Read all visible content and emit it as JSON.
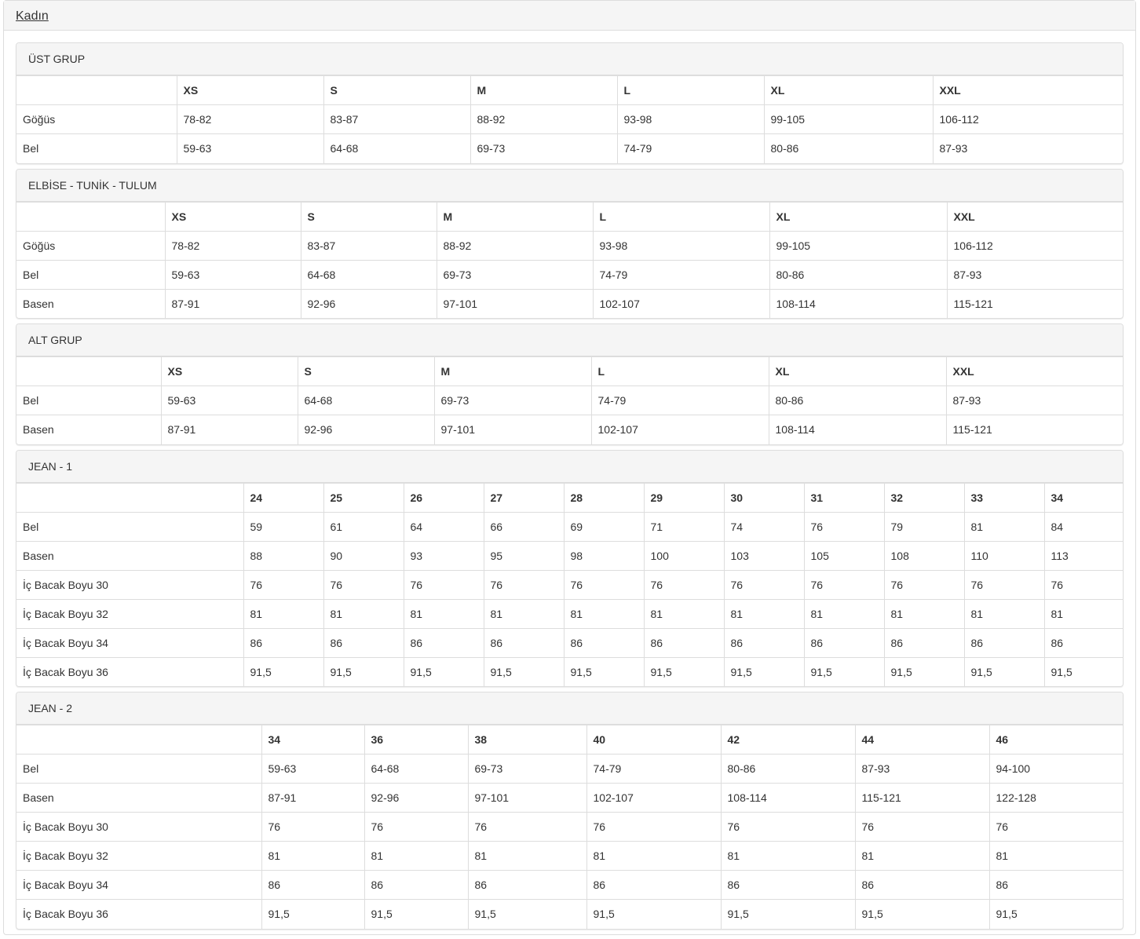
{
  "title": "Kadın",
  "tables": [
    {
      "name": "ÜST GRUP",
      "headers": [
        "",
        "XS",
        "S",
        "M",
        "L",
        "XL",
        "XXL"
      ],
      "rows": [
        [
          "Göğüs",
          "78-82",
          "83-87",
          "88-92",
          "93-98",
          "99-105",
          "106-112"
        ],
        [
          "Bel",
          "59-63",
          "64-68",
          "69-73",
          "74-79",
          "80-86",
          "87-93"
        ]
      ]
    },
    {
      "name": "ELBİSE - TUNİK - TULUM",
      "headers": [
        "",
        "XS",
        "S",
        "M",
        "L",
        "XL",
        "XXL"
      ],
      "rows": [
        [
          "Göğüs",
          "78-82",
          "83-87",
          "88-92",
          "93-98",
          "99-105",
          "106-112"
        ],
        [
          "Bel",
          "59-63",
          "64-68",
          "69-73",
          "74-79",
          "80-86",
          "87-93"
        ],
        [
          "Basen",
          "87-91",
          "92-96",
          "97-101",
          "102-107",
          "108-114",
          "115-121"
        ]
      ]
    },
    {
      "name": "ALT GRUP",
      "headers": [
        "",
        "XS",
        "S",
        "M",
        "L",
        "XL",
        "XXL"
      ],
      "rows": [
        [
          "Bel",
          "59-63",
          "64-68",
          "69-73",
          "74-79",
          "80-86",
          "87-93"
        ],
        [
          "Basen",
          "87-91",
          "92-96",
          "97-101",
          "102-107",
          "108-114",
          "115-121"
        ]
      ]
    },
    {
      "name": "JEAN - 1",
      "headers": [
        "",
        "24",
        "25",
        "26",
        "27",
        "28",
        "29",
        "30",
        "31",
        "32",
        "33",
        "34"
      ],
      "rows": [
        [
          "Bel",
          "59",
          "61",
          "64",
          "66",
          "69",
          "71",
          "74",
          "76",
          "79",
          "81",
          "84"
        ],
        [
          "Basen",
          "88",
          "90",
          "93",
          "95",
          "98",
          "100",
          "103",
          "105",
          "108",
          "110",
          "113"
        ],
        [
          "İç Bacak Boyu 30",
          "76",
          "76",
          "76",
          "76",
          "76",
          "76",
          "76",
          "76",
          "76",
          "76",
          "76"
        ],
        [
          "İç Bacak Boyu 32",
          "81",
          "81",
          "81",
          "81",
          "81",
          "81",
          "81",
          "81",
          "81",
          "81",
          "81"
        ],
        [
          "İç Bacak Boyu 34",
          "86",
          "86",
          "86",
          "86",
          "86",
          "86",
          "86",
          "86",
          "86",
          "86",
          "86"
        ],
        [
          "İç Bacak Boyu 36",
          "91,5",
          "91,5",
          "91,5",
          "91,5",
          "91,5",
          "91,5",
          "91,5",
          "91,5",
          "91,5",
          "91,5",
          "91,5"
        ]
      ]
    },
    {
      "name": "JEAN - 2",
      "headers": [
        "",
        "34",
        "36",
        "38",
        "40",
        "42",
        "44",
        "46"
      ],
      "rows": [
        [
          "Bel",
          "59-63",
          "64-68",
          "69-73",
          "74-79",
          "80-86",
          "87-93",
          "94-100"
        ],
        [
          "Basen",
          "87-91",
          "92-96",
          "97-101",
          "102-107",
          "108-114",
          "115-121",
          "122-128"
        ],
        [
          "İç Bacak Boyu 30",
          "76",
          "76",
          "76",
          "76",
          "76",
          "76",
          "76"
        ],
        [
          "İç Bacak Boyu 32",
          "81",
          "81",
          "81",
          "81",
          "81",
          "81",
          "81"
        ],
        [
          "İç Bacak Boyu 34",
          "86",
          "86",
          "86",
          "86",
          "86",
          "86",
          "86"
        ],
        [
          "İç Bacak Boyu 36",
          "91,5",
          "91,5",
          "91,5",
          "91,5",
          "91,5",
          "91,5",
          "91,5"
        ]
      ]
    }
  ]
}
